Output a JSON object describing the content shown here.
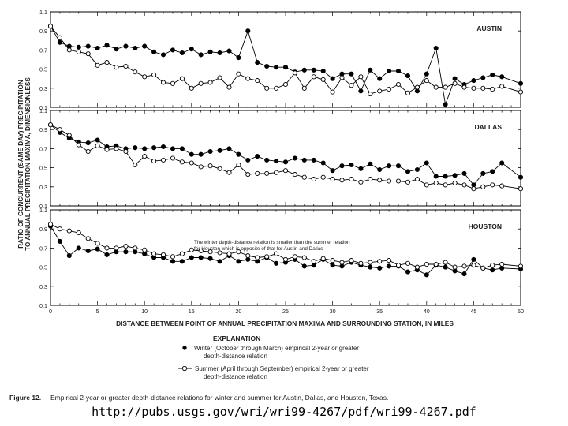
{
  "chart_data": {
    "type": "line",
    "y_axis_title_line1": "RATIO OF CONCURRENT (SAME DAY) PRECIPITATION",
    "y_axis_title_line2": "TO ANNUAL PRECIPITATION MAXIMA, DIMENSIONLESS",
    "xlabel": "DISTANCE BETWEEN POINT OF ANNUAL PRECIPITATION MAXIMA AND SURROUNDING STATION, IN MILES",
    "xlim": [
      0,
      50
    ],
    "x_ticks": [
      "0",
      "5",
      "10",
      "15",
      "20",
      "25",
      "30",
      "35",
      "40",
      "45",
      "50"
    ],
    "ylim": [
      0.1,
      1.1
    ],
    "y_ticks": [
      "0.1",
      "0.3",
      "0.5",
      "0.7",
      "0.9",
      "1.1"
    ],
    "panels": [
      {
        "title": "AUSTIN",
        "series": [
          {
            "name": "Winter",
            "x": [
              0,
              1,
              2,
              3,
              4,
              5,
              6,
              7,
              8,
              9,
              10,
              11,
              12,
              13,
              14,
              15,
              16,
              17,
              18,
              19,
              20,
              21,
              22,
              23,
              24,
              25,
              26,
              27,
              28,
              29,
              30,
              31,
              32,
              33,
              34,
              35,
              36,
              37,
              38,
              39,
              40,
              41,
              42,
              43,
              44,
              45,
              46,
              47,
              48,
              50
            ],
            "values": [
              0.95,
              0.78,
              0.74,
              0.73,
              0.74,
              0.72,
              0.75,
              0.71,
              0.74,
              0.72,
              0.74,
              0.68,
              0.65,
              0.7,
              0.67,
              0.71,
              0.65,
              0.68,
              0.67,
              0.69,
              0.62,
              0.9,
              0.57,
              0.53,
              0.52,
              0.52,
              0.47,
              0.49,
              0.49,
              0.48,
              0.4,
              0.45,
              0.45,
              0.27,
              0.49,
              0.4,
              0.48,
              0.48,
              0.43,
              0.27,
              0.45,
              0.72,
              0.13,
              0.4,
              0.34,
              0.38,
              0.41,
              0.44,
              0.42,
              0.35
            ]
          },
          {
            "name": "Summer",
            "x": [
              0,
              1,
              2,
              3,
              4,
              5,
              6,
              7,
              8,
              9,
              10,
              11,
              12,
              13,
              14,
              15,
              16,
              17,
              18,
              19,
              20,
              21,
              22,
              23,
              24,
              25,
              26,
              27,
              28,
              29,
              30,
              31,
              32,
              33,
              34,
              35,
              36,
              37,
              38,
              39,
              40,
              41,
              42,
              43,
              44,
              45,
              46,
              47,
              48,
              50
            ],
            "values": [
              0.95,
              0.83,
              0.7,
              0.68,
              0.66,
              0.54,
              0.57,
              0.52,
              0.53,
              0.47,
              0.42,
              0.44,
              0.36,
              0.35,
              0.4,
              0.3,
              0.35,
              0.36,
              0.41,
              0.31,
              0.45,
              0.4,
              0.38,
              0.3,
              0.3,
              0.34,
              0.46,
              0.3,
              0.42,
              0.39,
              0.26,
              0.41,
              0.33,
              0.42,
              0.24,
              0.27,
              0.29,
              0.34,
              0.25,
              0.31,
              0.38,
              0.31,
              0.31,
              0.35,
              0.31,
              0.3,
              0.3,
              0.29,
              0.32,
              0.26
            ]
          }
        ]
      },
      {
        "title": "DALLAS",
        "series": [
          {
            "name": "Winter",
            "x": [
              0,
              1,
              2,
              3,
              4,
              5,
              6,
              7,
              8,
              9,
              10,
              11,
              12,
              13,
              14,
              15,
              16,
              17,
              18,
              19,
              20,
              21,
              22,
              23,
              24,
              25,
              26,
              27,
              28,
              29,
              30,
              31,
              32,
              33,
              34,
              35,
              36,
              37,
              38,
              39,
              40,
              41,
              42,
              43,
              44,
              45,
              46,
              47,
              48,
              50
            ],
            "values": [
              0.95,
              0.87,
              0.81,
              0.77,
              0.76,
              0.79,
              0.72,
              0.73,
              0.7,
              0.71,
              0.7,
              0.71,
              0.72,
              0.7,
              0.7,
              0.64,
              0.64,
              0.67,
              0.68,
              0.7,
              0.64,
              0.58,
              0.62,
              0.58,
              0.57,
              0.56,
              0.6,
              0.58,
              0.58,
              0.55,
              0.47,
              0.52,
              0.53,
              0.49,
              0.54,
              0.48,
              0.52,
              0.52,
              0.46,
              0.48,
              0.55,
              0.41,
              0.41,
              0.42,
              0.44,
              0.32,
              0.44,
              0.46,
              0.55,
              0.4
            ]
          },
          {
            "name": "Summer",
            "x": [
              0,
              1,
              2,
              3,
              4,
              5,
              6,
              7,
              8,
              9,
              10,
              11,
              12,
              13,
              14,
              15,
              16,
              17,
              18,
              19,
              20,
              21,
              22,
              23,
              24,
              25,
              26,
              27,
              28,
              29,
              30,
              31,
              32,
              33,
              34,
              35,
              36,
              37,
              38,
              39,
              40,
              41,
              42,
              43,
              44,
              45,
              46,
              47,
              48,
              50
            ],
            "values": [
              0.95,
              0.9,
              0.84,
              0.74,
              0.67,
              0.73,
              0.69,
              0.7,
              0.67,
              0.53,
              0.62,
              0.57,
              0.58,
              0.6,
              0.56,
              0.55,
              0.51,
              0.52,
              0.49,
              0.45,
              0.53,
              0.43,
              0.44,
              0.44,
              0.45,
              0.47,
              0.43,
              0.4,
              0.38,
              0.4,
              0.38,
              0.37,
              0.38,
              0.35,
              0.38,
              0.37,
              0.36,
              0.36,
              0.35,
              0.38,
              0.32,
              0.34,
              0.32,
              0.34,
              0.32,
              0.28,
              0.3,
              0.32,
              0.31,
              0.28
            ]
          }
        ]
      },
      {
        "title": "HOUSTON",
        "annotation_line1": "The winter depth-distance relation is smaller than the summer relation",
        "annotation_line2": "for Houston which is opposite of that for Austin and Dallas",
        "series": [
          {
            "name": "Winter",
            "x": [
              0,
              1,
              2,
              3,
              4,
              5,
              6,
              7,
              8,
              9,
              10,
              11,
              12,
              13,
              14,
              15,
              16,
              17,
              18,
              19,
              20,
              21,
              22,
              23,
              24,
              25,
              26,
              27,
              28,
              29,
              30,
              31,
              32,
              33,
              34,
              35,
              36,
              37,
              38,
              39,
              40,
              41,
              42,
              43,
              44,
              45,
              46,
              47,
              48,
              50
            ],
            "values": [
              0.93,
              0.77,
              0.62,
              0.7,
              0.67,
              0.69,
              0.63,
              0.66,
              0.66,
              0.66,
              0.64,
              0.6,
              0.6,
              0.56,
              0.56,
              0.6,
              0.6,
              0.59,
              0.56,
              0.62,
              0.56,
              0.58,
              0.56,
              0.6,
              0.54,
              0.55,
              0.58,
              0.51,
              0.52,
              0.58,
              0.52,
              0.51,
              0.55,
              0.52,
              0.5,
              0.49,
              0.51,
              0.51,
              0.45,
              0.47,
              0.42,
              0.52,
              0.5,
              0.46,
              0.43,
              0.58,
              0.49,
              0.47,
              0.49,
              0.48
            ]
          },
          {
            "name": "Summer",
            "x": [
              0,
              1,
              2,
              3,
              4,
              5,
              6,
              7,
              8,
              9,
              10,
              11,
              12,
              13,
              14,
              15,
              16,
              17,
              18,
              19,
              20,
              21,
              22,
              23,
              24,
              25,
              26,
              27,
              28,
              29,
              30,
              31,
              32,
              33,
              34,
              35,
              36,
              37,
              38,
              39,
              40,
              41,
              42,
              43,
              44,
              45,
              46,
              47,
              48,
              50
            ],
            "values": [
              0.95,
              0.9,
              0.88,
              0.86,
              0.8,
              0.75,
              0.7,
              0.7,
              0.72,
              0.7,
              0.68,
              0.64,
              0.63,
              0.61,
              0.64,
              0.68,
              0.67,
              0.66,
              0.65,
              0.64,
              0.66,
              0.62,
              0.6,
              0.61,
              0.64,
              0.58,
              0.61,
              0.6,
              0.56,
              0.59,
              0.57,
              0.55,
              0.57,
              0.54,
              0.55,
              0.56,
              0.57,
              0.52,
              0.54,
              0.5,
              0.53,
              0.53,
              0.55,
              0.5,
              0.51,
              0.52,
              0.49,
              0.52,
              0.53,
              0.51
            ]
          }
        ]
      }
    ],
    "explanation_title": "EXPLANATION",
    "legend": [
      {
        "name": "Winter",
        "line1": "Winter (October through March) empirical 2-year or greater",
        "line2": "depth-distance relation"
      },
      {
        "name": "Summer",
        "line1": "Summer (April through September) empirical 2-year or greater",
        "line2": "depth-distance relation"
      }
    ],
    "figure_label": "Figure 12.",
    "caption": "Empirical 2-year or greater depth-distance relations for winter and summer for Austin, Dallas, and Houston, Texas."
  },
  "source_url": "http://pubs.usgs.gov/wri/wri99-4267/pdf/wri99-4267.pdf"
}
